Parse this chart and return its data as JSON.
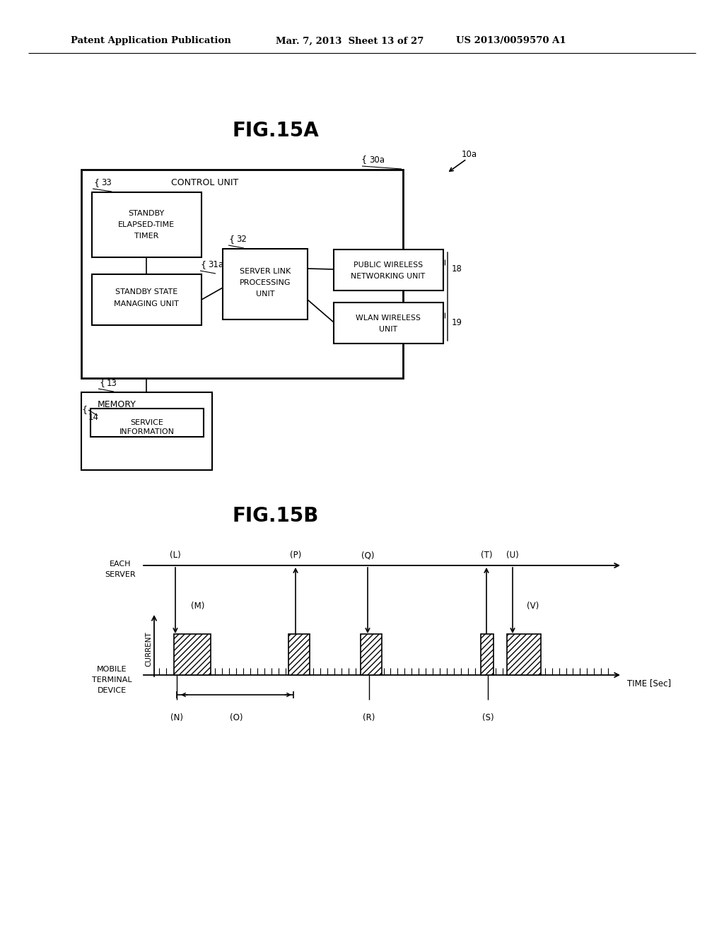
{
  "bg_color": "#ffffff",
  "header_left": "Patent Application Publication",
  "header_mid": "Mar. 7, 2013  Sheet 13 of 27",
  "header_right": "US 2013/0059570 A1",
  "fig15a_title": "FIG.15A",
  "fig15b_title": "FIG.15B",
  "fig_width": 10.24,
  "fig_height": 13.2
}
